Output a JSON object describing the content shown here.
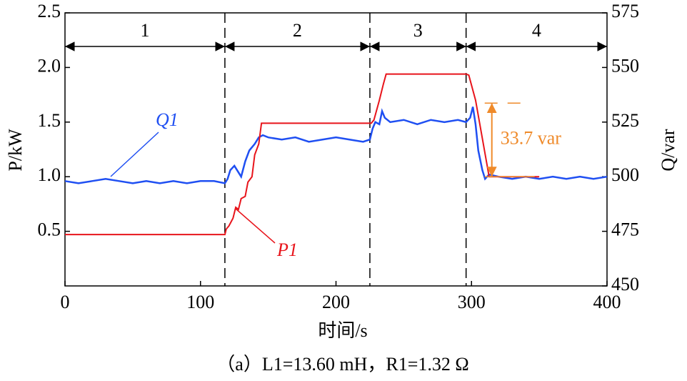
{
  "chart_data": {
    "type": "line",
    "caption": "（a）L1=13.60 mH，R1=1.32 Ω",
    "x_label": "时间/s",
    "y_label": "P/kW",
    "y2_label": "Q/var",
    "xlim": [
      0,
      400
    ],
    "xticks": [
      0,
      100,
      200,
      300,
      400
    ],
    "ylim": [
      0,
      2.5
    ],
    "yticks": [
      0.5,
      {
        "value": 1,
        "label": "1.0"
      },
      1.5,
      {
        "value": 2,
        "label": "2.0"
      },
      2.5
    ],
    "y2lim": [
      450,
      575
    ],
    "y2ticks": [
      450,
      475,
      500,
      525,
      550,
      575
    ],
    "region_bounds": [
      0,
      118,
      225,
      296,
      400
    ],
    "region_labels": [
      "1",
      "2",
      "3",
      "4"
    ],
    "series": [
      {
        "name": "P1",
        "color": "#e8141b",
        "axis": "y",
        "x": [
          0,
          118,
          119,
          121,
          124,
          126,
          128,
          130,
          133,
          135,
          138,
          140,
          143,
          145,
          224,
          226,
          228,
          232,
          235,
          237,
          296,
          298,
          303,
          308,
          313,
          350
        ],
        "values": [
          0.47,
          0.47,
          0.52,
          0.55,
          0.62,
          0.72,
          0.7,
          0.8,
          0.82,
          0.95,
          1.0,
          1.2,
          1.3,
          1.49,
          1.49,
          1.49,
          1.52,
          1.7,
          1.85,
          1.94,
          1.94,
          1.93,
          1.7,
          1.35,
          1.0,
          1.0
        ]
      },
      {
        "name": "Q1",
        "color": "#1f4ff2",
        "axis": "y2",
        "x": [
          0,
          10,
          20,
          30,
          40,
          50,
          60,
          70,
          80,
          90,
          100,
          110,
          118,
          120,
          122,
          125,
          128,
          130,
          133,
          136,
          140,
          143,
          146,
          150,
          160,
          170,
          180,
          190,
          200,
          210,
          220,
          225,
          227,
          229,
          232,
          234,
          236,
          240,
          250,
          260,
          270,
          280,
          290,
          296,
          299,
          301,
          303,
          305,
          308,
          310,
          313,
          320,
          330,
          340,
          350,
          360,
          370,
          380,
          390,
          400
        ],
        "values": [
          498,
          497,
          498,
          499,
          498,
          497,
          498,
          497,
          498,
          497,
          498,
          498,
          497,
          499,
          503,
          505,
          502,
          500,
          507,
          512,
          515,
          518,
          519,
          518,
          517,
          518,
          516,
          517,
          518,
          517,
          516,
          517,
          522,
          525,
          524,
          530,
          527,
          525,
          526,
          524,
          526,
          525,
          526,
          525,
          527,
          532,
          524,
          512,
          503,
          499,
          501,
          500,
          499,
          500,
          499,
          500,
          499,
          500,
          499,
          500
        ]
      }
    ],
    "annotation": {
      "text": "33.7 var",
      "color": "#ef8a2a",
      "x": 315,
      "y2_from": 500,
      "y2_to": 533.7
    }
  }
}
